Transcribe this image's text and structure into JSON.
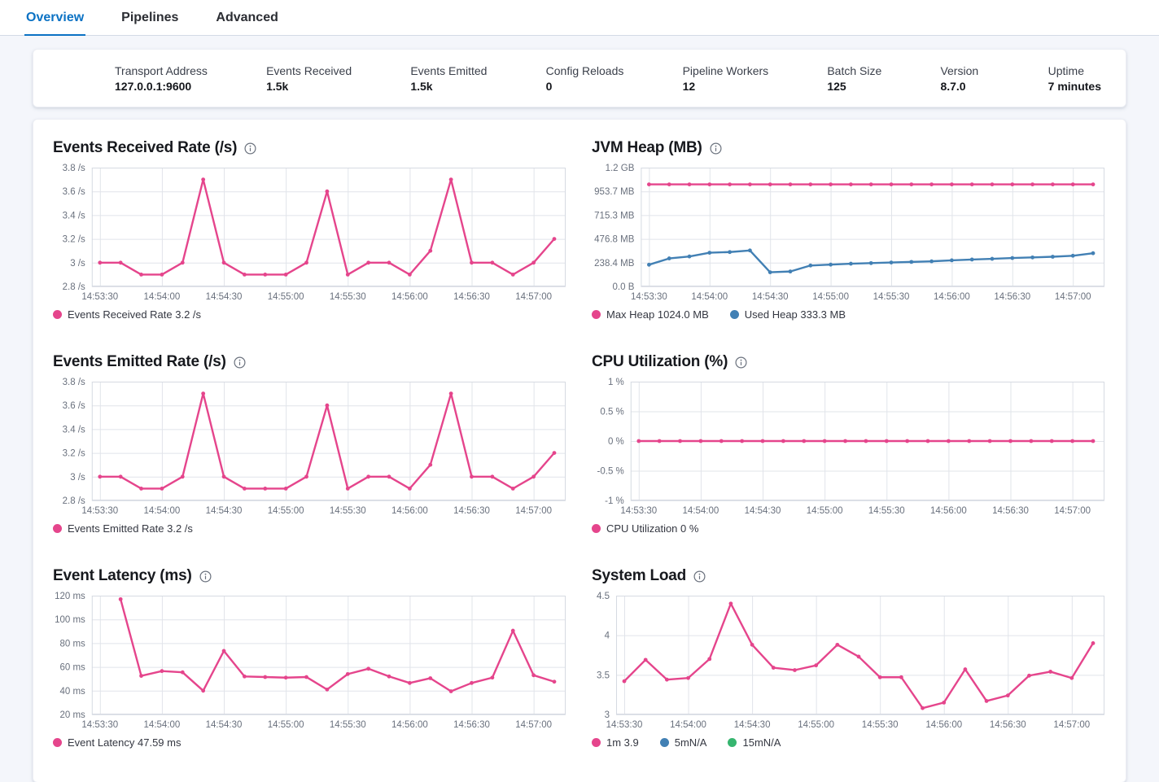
{
  "tabs": [
    {
      "label": "Overview",
      "active": true
    },
    {
      "label": "Pipelines",
      "active": false
    },
    {
      "label": "Advanced",
      "active": false
    }
  ],
  "stats": [
    {
      "label": "Transport Address",
      "value": "127.0.0.1:9600"
    },
    {
      "label": "Events Received",
      "value": "1.5k"
    },
    {
      "label": "Events Emitted",
      "value": "1.5k"
    },
    {
      "label": "Config Reloads",
      "value": "0"
    },
    {
      "label": "Pipeline Workers",
      "value": "12"
    },
    {
      "label": "Batch Size",
      "value": "125"
    },
    {
      "label": "Version",
      "value": "8.7.0"
    },
    {
      "label": "Uptime",
      "value": "7 minutes"
    }
  ],
  "colors": {
    "pink": "#e5458c",
    "blue": "#4280b4",
    "green": "#36b56f",
    "grid": "#e1e4ea",
    "plot_border": "#d6dae2",
    "axis_text": "#69707d",
    "tab_active": "#0b72c4"
  },
  "time_axis": {
    "x": [
      "14:53:30",
      "14:53:40",
      "14:53:50",
      "14:54:00",
      "14:54:10",
      "14:54:20",
      "14:54:30",
      "14:54:40",
      "14:54:50",
      "14:55:00",
      "14:55:10",
      "14:55:20",
      "14:55:30",
      "14:55:40",
      "14:55:50",
      "14:56:00",
      "14:56:10",
      "14:56:20",
      "14:56:30",
      "14:56:40",
      "14:56:50",
      "14:57:00",
      "14:57:10"
    ],
    "tick_labels": [
      "14:53:30",
      "14:54:00",
      "14:54:30",
      "14:55:00",
      "14:55:30",
      "14:56:00",
      "14:56:30",
      "14:57:00"
    ],
    "tick_indices": [
      0,
      3,
      6,
      9,
      12,
      15,
      18,
      21
    ]
  },
  "chart_data": [
    {
      "type": "line",
      "title": "Events Received Rate (/s)",
      "ylim": [
        2.8,
        3.8
      ],
      "ytick_values": [
        3.8,
        3.6,
        3.4,
        3.2,
        3.0,
        2.8
      ],
      "ytick_labels": [
        "3.8 /s",
        "3.6 /s",
        "3.4 /s",
        "3.2 /s",
        "3 /s",
        "2.8 /s"
      ],
      "xticks": [
        "14:53:30",
        "14:54:00",
        "14:54:30",
        "14:55:00",
        "14:55:30",
        "14:56:00",
        "14:56:30",
        "14:57:00"
      ],
      "series": [
        {
          "name": "Events Received Rate",
          "color": "pink",
          "start_index": 0,
          "values": [
            3.0,
            3.0,
            2.9,
            2.9,
            3.0,
            3.7,
            3.0,
            2.9,
            2.9,
            2.9,
            3.0,
            3.6,
            2.9,
            3.0,
            3.0,
            2.9,
            3.1,
            3.7,
            3.0,
            3.0,
            2.9,
            3.0,
            3.2
          ]
        }
      ],
      "legend": [
        {
          "text": "Events Received Rate 3.2 /s",
          "color": "pink"
        }
      ]
    },
    {
      "type": "line",
      "title": "JVM Heap (MB)",
      "ylim": [
        0,
        1192.1
      ],
      "ytick_values": [
        1192.1,
        953.7,
        715.3,
        476.8,
        238.4,
        0
      ],
      "ytick_labels": [
        "1.2 GB",
        "953.7 MB",
        "715.3 MB",
        "476.8 MB",
        "238.4 MB",
        "0.0 B"
      ],
      "xticks": [
        "14:53:30",
        "14:54:00",
        "14:54:30",
        "14:55:00",
        "14:55:30",
        "14:56:00",
        "14:56:30",
        "14:57:00"
      ],
      "series": [
        {
          "name": "Max Heap",
          "color": "pink",
          "start_index": 0,
          "values": [
            1024,
            1024,
            1024,
            1024,
            1024,
            1024,
            1024,
            1024,
            1024,
            1024,
            1024,
            1024,
            1024,
            1024,
            1024,
            1024,
            1024,
            1024,
            1024,
            1024,
            1024,
            1024,
            1024
          ]
        },
        {
          "name": "Used Heap",
          "color": "blue",
          "start_index": 0,
          "values": [
            218,
            281,
            301,
            338,
            345,
            361,
            142,
            150,
            210,
            219,
            228,
            234,
            240,
            246,
            252,
            262,
            270,
            277,
            285,
            291,
            298,
            308,
            333.3
          ]
        }
      ],
      "legend": [
        {
          "text": "Max Heap 1024.0 MB",
          "color": "pink"
        },
        {
          "text": "Used Heap 333.3 MB",
          "color": "blue"
        }
      ]
    },
    {
      "type": "line",
      "title": "Events Emitted Rate (/s)",
      "ylim": [
        2.8,
        3.8
      ],
      "ytick_values": [
        3.8,
        3.6,
        3.4,
        3.2,
        3.0,
        2.8
      ],
      "ytick_labels": [
        "3.8 /s",
        "3.6 /s",
        "3.4 /s",
        "3.2 /s",
        "3 /s",
        "2.8 /s"
      ],
      "xticks": [
        "14:53:30",
        "14:54:00",
        "14:54:30",
        "14:55:00",
        "14:55:30",
        "14:56:00",
        "14:56:30",
        "14:57:00"
      ],
      "series": [
        {
          "name": "Events Emitted Rate",
          "color": "pink",
          "start_index": 0,
          "values": [
            3.0,
            3.0,
            2.9,
            2.9,
            3.0,
            3.7,
            3.0,
            2.9,
            2.9,
            2.9,
            3.0,
            3.6,
            2.9,
            3.0,
            3.0,
            2.9,
            3.1,
            3.7,
            3.0,
            3.0,
            2.9,
            3.0,
            3.2
          ]
        }
      ],
      "legend": [
        {
          "text": "Events Emitted Rate 3.2 /s",
          "color": "pink"
        }
      ]
    },
    {
      "type": "line",
      "title": "CPU Utilization (%)",
      "ylim": [
        -1,
        1
      ],
      "ytick_values": [
        1,
        0.5,
        0,
        -0.5,
        -1
      ],
      "ytick_labels": [
        "1 %",
        "0.5 %",
        "0 %",
        "-0.5 %",
        "-1 %"
      ],
      "xticks": [
        "14:53:30",
        "14:54:00",
        "14:54:30",
        "14:55:00",
        "14:55:30",
        "14:56:00",
        "14:56:30",
        "14:57:00"
      ],
      "series": [
        {
          "name": "CPU Utilization",
          "color": "pink",
          "start_index": 0,
          "values": [
            0,
            0,
            0,
            0,
            0,
            0,
            0,
            0,
            0,
            0,
            0,
            0,
            0,
            0,
            0,
            0,
            0,
            0,
            0,
            0,
            0,
            0,
            0
          ]
        }
      ],
      "legend": [
        {
          "text": "CPU Utilization 0 %",
          "color": "pink"
        }
      ]
    },
    {
      "type": "line",
      "title": "Event Latency (ms)",
      "ylim": [
        20,
        120
      ],
      "ytick_values": [
        120,
        100,
        80,
        60,
        40,
        20
      ],
      "ytick_labels": [
        "120 ms",
        "100 ms",
        "80 ms",
        "60 ms",
        "40 ms",
        "20 ms"
      ],
      "xticks": [
        "14:53:30",
        "14:54:00",
        "14:54:30",
        "14:55:00",
        "14:55:30",
        "14:56:00",
        "14:56:30",
        "14:57:00"
      ],
      "series": [
        {
          "name": "Event Latency",
          "color": "pink",
          "start_index": 1,
          "values": [
            117,
            52.5,
            56.5,
            55.5,
            40,
            73.5,
            52,
            51.5,
            51,
            51.5,
            41,
            54,
            58.5,
            52,
            46.5,
            50.5,
            39.5,
            46.5,
            51,
            90.5,
            53,
            47.59
          ]
        }
      ],
      "legend": [
        {
          "text": "Event Latency 47.59 ms",
          "color": "pink"
        }
      ]
    },
    {
      "type": "line",
      "title": "System Load",
      "ylim": [
        3,
        4.5
      ],
      "ytick_values": [
        4.5,
        4,
        3.5,
        3
      ],
      "ytick_labels": [
        "4.5",
        "4",
        "3.5",
        "3"
      ],
      "xticks": [
        "14:53:30",
        "14:54:00",
        "14:54:30",
        "14:55:00",
        "14:55:30",
        "14:56:00",
        "14:56:30",
        "14:57:00"
      ],
      "series": [
        {
          "name": "1m",
          "color": "pink",
          "start_index": 0,
          "values": [
            3.42,
            3.69,
            3.44,
            3.46,
            3.7,
            4.4,
            3.88,
            3.59,
            3.56,
            3.62,
            3.88,
            3.73,
            3.47,
            3.47,
            3.08,
            3.15,
            3.57,
            3.17,
            3.24,
            3.49,
            3.54,
            3.46,
            3.9
          ]
        }
      ],
      "legend": [
        {
          "text": "1m 3.9",
          "color": "pink"
        },
        {
          "text": "5mN/A",
          "color": "blue"
        },
        {
          "text": "15mN/A",
          "color": "green"
        }
      ]
    }
  ]
}
